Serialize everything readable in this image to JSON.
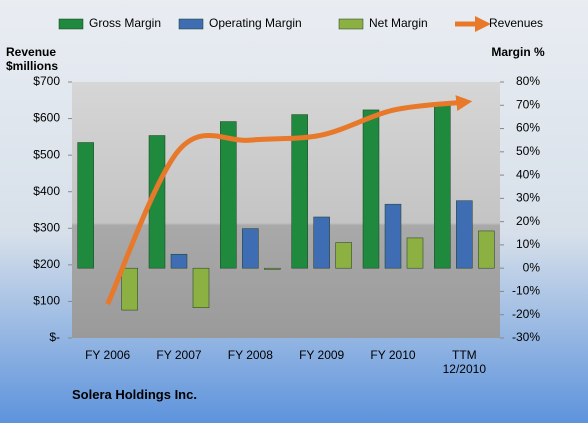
{
  "chart_data": {
    "type": "bar",
    "caption": "Solera Holdings Inc.",
    "ylabel": "Revenue $millions",
    "y2label": "Margin %",
    "categories": [
      "FY 2006",
      "FY 2007",
      "FY 2008",
      "FY 2009",
      "FY 2010",
      "TTM 12/2010"
    ],
    "series": [
      {
        "name": "Gross Margin",
        "color": "#1f8a3e",
        "axis": "y2",
        "values": [
          54,
          57,
          63,
          66,
          68,
          70
        ]
      },
      {
        "name": "Operating Margin",
        "color": "#3f6db3",
        "axis": "y2",
        "values": [
          null,
          6,
          17,
          22,
          27.5,
          29
        ]
      },
      {
        "name": "Net Margin",
        "color": "#8db043",
        "axis": "y2",
        "values": [
          -18,
          -17,
          -0.5,
          11,
          13,
          16
        ]
      },
      {
        "name": "Revenues",
        "color": "#e8782a",
        "type": "line",
        "values": [
          93,
          514,
          541,
          555,
          623,
          645
        ]
      }
    ],
    "ylim": [
      0,
      700
    ],
    "yticks": [
      {
        "value": 0,
        "label": "$-"
      },
      {
        "value": 100,
        "label": "$100"
      },
      {
        "value": 200,
        "label": "$200"
      },
      {
        "value": 300,
        "label": "$300"
      },
      {
        "value": 400,
        "label": "$400"
      },
      {
        "value": 500,
        "label": "$500"
      },
      {
        "value": 600,
        "label": "$600"
      },
      {
        "value": 700,
        "label": "$700"
      }
    ],
    "y2lim": [
      -30,
      80
    ],
    "y2ticks": [
      {
        "value": -30,
        "label": "-30%"
      },
      {
        "value": -20,
        "label": "-20%"
      },
      {
        "value": -10,
        "label": "-10%"
      },
      {
        "value": 0,
        "label": "0%"
      },
      {
        "value": 10,
        "label": "10%"
      },
      {
        "value": 20,
        "label": "20%"
      },
      {
        "value": 30,
        "label": "30%"
      },
      {
        "value": 40,
        "label": "40%"
      },
      {
        "value": 50,
        "label": "50%"
      },
      {
        "value": 60,
        "label": "60%"
      },
      {
        "value": 70,
        "label": "70%"
      },
      {
        "value": 80,
        "label": "80%"
      }
    ]
  }
}
